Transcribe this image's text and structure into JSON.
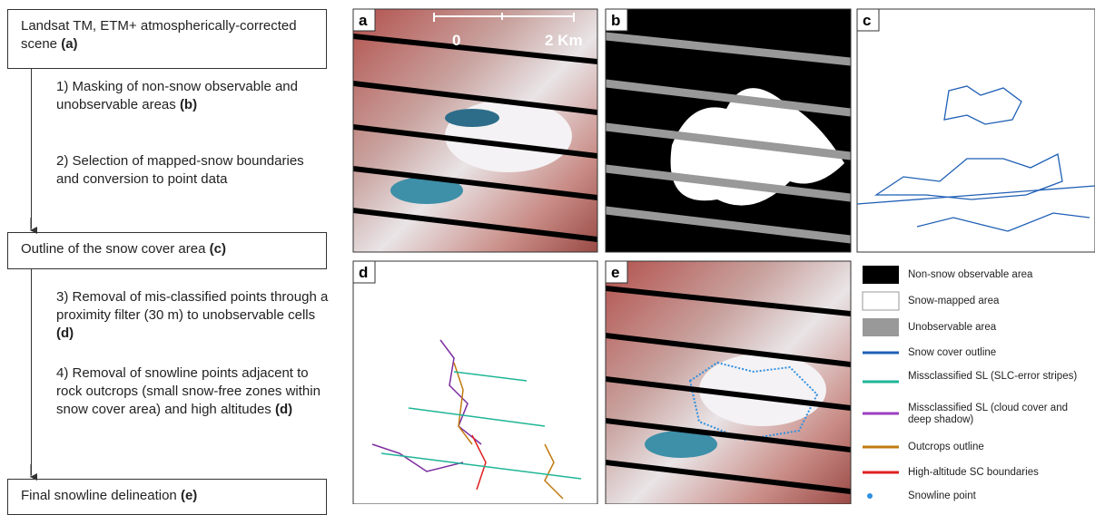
{
  "flowchart": {
    "box1": {
      "text": "Landsat TM, ETM+ atmospherically-corrected scene",
      "ref": "(a)"
    },
    "steps1": [
      {
        "text": "1) Masking of non-snow observable and unobservable areas",
        "ref": "(b)"
      },
      {
        "text": "2) Selection of mapped-snow boundaries and conversion to point data"
      }
    ],
    "box2": {
      "text": "Outline of the snow cover area",
      "ref": "(c)"
    },
    "steps2": [
      {
        "text": "3) Removal of mis-classified points through a proximity filter (30 m) to unobservable cells",
        "ref": "(d)"
      },
      {
        "text": "4) Removal of snowline points adjacent to rock outcrops (small snow-free zones within snow cover area) and high altitudes",
        "ref": "(d)"
      }
    ],
    "box3": {
      "text": "Final snowline delineation",
      "ref": "(e)"
    }
  },
  "panels": {
    "labels": [
      "a",
      "b",
      "c",
      "d",
      "e"
    ],
    "scale": {
      "start": "0",
      "end": "2 Km"
    }
  },
  "legend": [
    "Non-snow observable area",
    "Snow-mapped area",
    "Unobservable area",
    "Snow cover outline",
    "Missclassified SL (SLC-error stripes)",
    "Missclassified SL (cloud cover and deep shadow)",
    "Outcrops outline",
    "High-altitude SC boundaries",
    "Snowline point"
  ]
}
